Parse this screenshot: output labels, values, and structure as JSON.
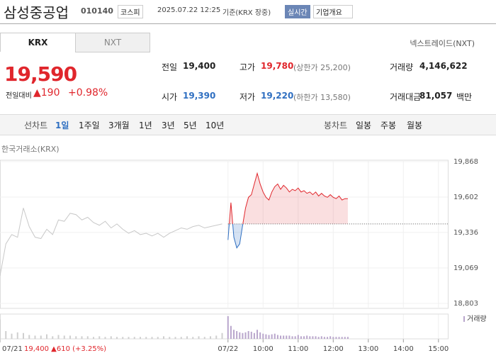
{
  "header": {
    "name": "삼성중공업",
    "code": "010140",
    "market": "코스피",
    "time": "2025.07.22 12:25",
    "basis": "기준(KRX 장중)",
    "realtime": "실시간",
    "company": "기업개요"
  },
  "tabs": [
    "KRX",
    "NXT"
  ],
  "nxt_link": "넥스트레이드(NXT)",
  "price": {
    "current": "19,590",
    "change_label": "전일대비",
    "change": "▲190",
    "change_rate": "+0.98%"
  },
  "stats": [
    {
      "label": "전일",
      "value": "19,400"
    },
    {
      "label": "고가",
      "value": "19,780",
      "extra": "(상한가 25,200)"
    },
    {
      "label": "거래량",
      "value": "4,146,622"
    },
    {
      "label": "시가",
      "value": "19,390"
    },
    {
      "label": "저가",
      "value": "19,220",
      "extra": "(하한가 13,580)"
    },
    {
      "label": "거래대금",
      "value": "81,057",
      "unit": "백만"
    }
  ],
  "periods": {
    "line_label": "선차트",
    "line": [
      "1일",
      "1주일",
      "3개월",
      "1년",
      "3년",
      "5년",
      "10년"
    ],
    "candle_label": "봉차트",
    "candle": [
      "일봉",
      "주봉",
      "월봉"
    ]
  },
  "chart_data": {
    "type": "line",
    "title": "한국거래소(KRX)",
    "annotation": "19,400 ▲610 (+3.25%)",
    "prev_close": 19400,
    "xlim": [
      -390,
      376
    ],
    "ylim": [
      18803,
      19868
    ],
    "xticks": [
      {
        "value": -390,
        "label": "07/21"
      },
      {
        "value": 0,
        "label": "07/22"
      },
      {
        "value": 60,
        "label": "10:00"
      },
      {
        "value": 120,
        "label": "11:00"
      },
      {
        "value": 180,
        "label": "12:00"
      },
      {
        "value": 240,
        "label": "13:00"
      },
      {
        "value": 300,
        "label": "14:00"
      },
      {
        "value": 360,
        "label": "15:00"
      }
    ],
    "yticks": [
      {
        "value": 18803,
        "label": "18,803"
      },
      {
        "value": 19069,
        "label": "19,069"
      },
      {
        "value": 19336,
        "label": "19,336"
      },
      {
        "value": 19602,
        "label": "19,602"
      },
      {
        "value": 19868,
        "label": "19,868"
      }
    ],
    "grid": true,
    "series": [
      {
        "color": "#c8c8c8",
        "x": [
          -390,
          -380,
          -370,
          -360,
          -350,
          -340,
          -330,
          -320,
          -310,
          -300,
          -290,
          -280,
          -270,
          -260,
          -250,
          -240,
          -230,
          -220,
          -210,
          -200,
          -190,
          -180,
          -170,
          -160,
          -150,
          -140,
          -130,
          -120,
          -110,
          -100,
          -90,
          -80,
          -70,
          -60,
          -50,
          -40,
          -30,
          -20,
          -10
        ],
        "values": [
          19010,
          19250,
          19320,
          19300,
          19520,
          19380,
          19300,
          19290,
          19360,
          19320,
          19430,
          19420,
          19480,
          19470,
          19430,
          19450,
          19410,
          19390,
          19420,
          19370,
          19400,
          19360,
          19330,
          19350,
          19320,
          19330,
          19310,
          19330,
          19300,
          19330,
          19350,
          19370,
          19360,
          19380,
          19390,
          19370,
          19380,
          19390,
          19400
        ]
      },
      {
        "color": "#e0262c",
        "color_down": "#2f6fc1",
        "x": [
          0,
          5,
          10,
          15,
          20,
          25,
          30,
          35,
          40,
          45,
          50,
          55,
          60,
          65,
          70,
          75,
          80,
          85,
          90,
          95,
          100,
          105,
          110,
          115,
          120,
          125,
          130,
          135,
          140,
          145,
          150,
          155,
          160,
          165,
          170,
          175,
          180,
          185,
          190,
          195,
          200,
          205
        ],
        "values": [
          19280,
          19560,
          19300,
          19220,
          19250,
          19390,
          19520,
          19600,
          19620,
          19700,
          19780,
          19700,
          19640,
          19600,
          19580,
          19640,
          19680,
          19700,
          19660,
          19690,
          19670,
          19640,
          19660,
          19650,
          19670,
          19640,
          19650,
          19630,
          19640,
          19620,
          19640,
          19610,
          19630,
          19610,
          19600,
          19620,
          19600,
          19590,
          19610,
          19580,
          19590,
          19590
        ]
      }
    ],
    "volume": {
      "name": "거래량",
      "color": "#b9a6cc",
      "values": [
        [
          30,
          12,
          8,
          10,
          9,
          6,
          5,
          5,
          7,
          4,
          6,
          5,
          5,
          4,
          4,
          4,
          3,
          4,
          3,
          4,
          3,
          3,
          3,
          3,
          3,
          3,
          3,
          3,
          4,
          3,
          3,
          3,
          4,
          3,
          4,
          3,
          4,
          5,
          9
        ],
        [
          35,
          20,
          14,
          12,
          10,
          9,
          10,
          12,
          11,
          9,
          14,
          10,
          8,
          7,
          6,
          7,
          8,
          6,
          5,
          5,
          5,
          5,
          4,
          4,
          6,
          4,
          4,
          5,
          4,
          4,
          4,
          3,
          4,
          3,
          3,
          4,
          3,
          3,
          3,
          3,
          3,
          3
        ]
      ]
    }
  }
}
